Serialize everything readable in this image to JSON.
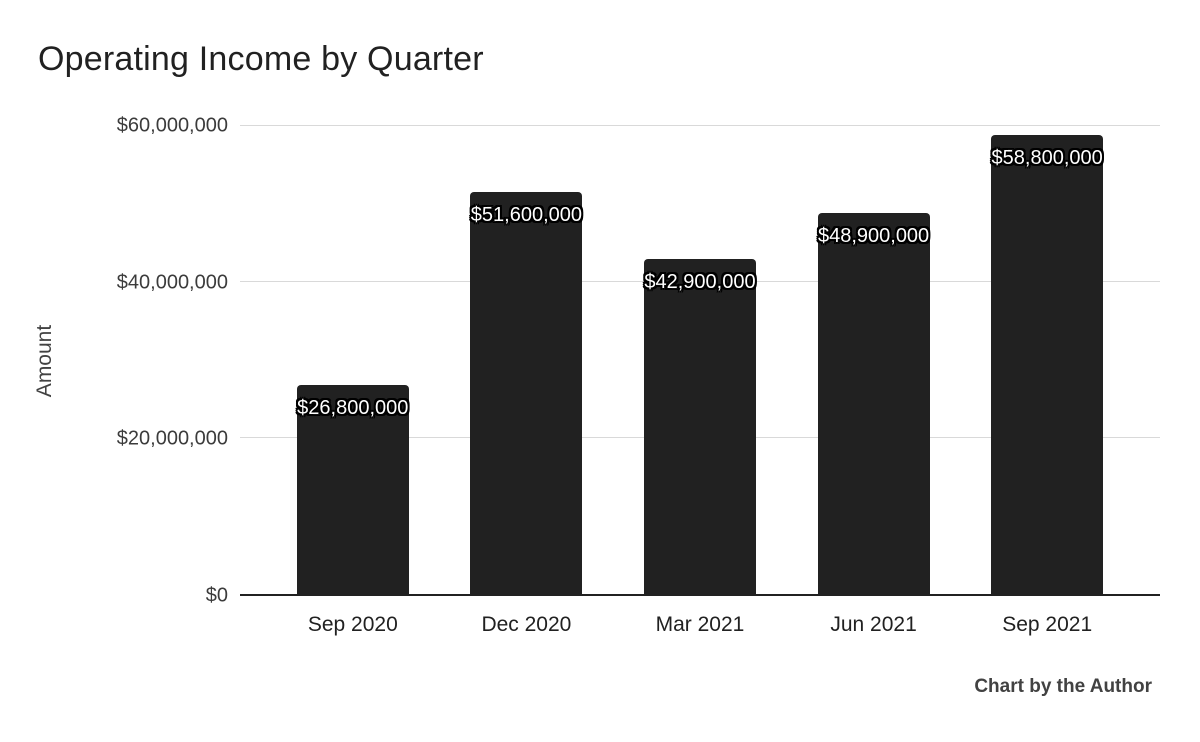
{
  "title": "Operating Income by Quarter",
  "footer": "Chart by the Author",
  "chart_data": {
    "type": "bar",
    "title": "Operating Income by Quarter",
    "categories": [
      "Sep 2020",
      "Dec 2020",
      "Mar 2021",
      "Jun 2021",
      "Sep 2021"
    ],
    "values": [
      26800000,
      51600000,
      42900000,
      48900000,
      58800000
    ],
    "value_labels": [
      "$26,800,000",
      "$51,600,000",
      "$42,900,000",
      "$48,900,000",
      "$58,800,000"
    ],
    "xlabel": "",
    "ylabel": "Amount",
    "ylim": [
      0,
      60000000
    ],
    "ytick_values": [
      0,
      20000000,
      40000000,
      60000000
    ],
    "ytick_labels": [
      "$0",
      "$20,000,000",
      "$40,000,000",
      "$60,000,000"
    ],
    "grid": true,
    "legend": "none",
    "colors": {
      "bar": "#212121",
      "value_label_fill": "#ffffff",
      "value_label_outline": "#000000",
      "gridline": "#d9d9d9",
      "axis_line": "#212121",
      "background": "#ffffff"
    },
    "annotations": [
      "Chart by the Author"
    ]
  }
}
